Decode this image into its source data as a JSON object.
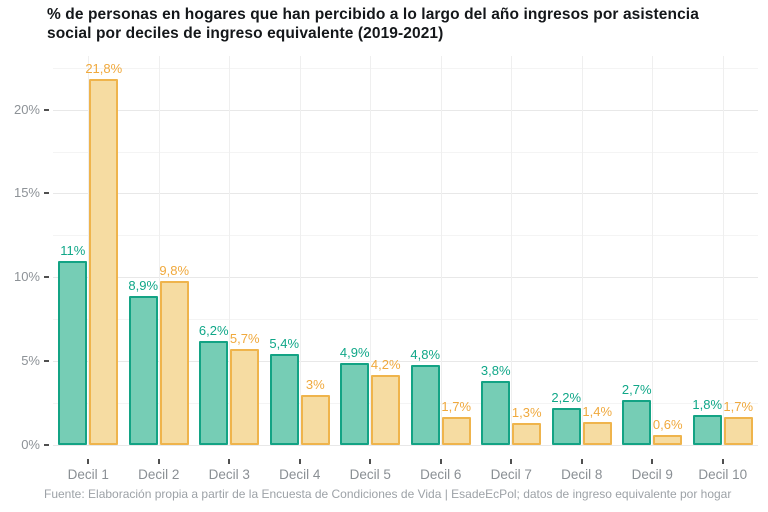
{
  "footer": {
    "text": "Fuente: Elaboración propia a partir de la Encuesta de Condiciones de Vida | EsadeEcPol; datos de ingreso equivalente por hogar"
  },
  "colors": {
    "title_text": "#14171a",
    "axis_text": "#8d9297",
    "footer_text": "#9da2a7",
    "tick": "#4f4f4f",
    "grid_major": "#e8e8e8",
    "grid_minor": "#f4f4f4",
    "grid_vertical": "#efefef"
  },
  "chart_data": {
    "type": "bar",
    "title": "% de personas en hogares que han percibido a lo largo del año ingresos por asistencia social por deciles de ingreso equivalente (2019-2021)",
    "categories": [
      "Decil 1",
      "Decil 2",
      "Decil 3",
      "Decil 4",
      "Decil 5",
      "Decil 6",
      "Decil 7",
      "Decil 8",
      "Decil 9",
      "Decil 10"
    ],
    "series": [
      {
        "key": "green",
        "values": [
          11,
          8.9,
          6.2,
          5.4,
          4.9,
          4.8,
          3.8,
          2.2,
          2.7,
          1.8
        ],
        "labels": [
          "11%",
          "8,9%",
          "6,2%",
          "5,4%",
          "4,9%",
          "4,8%",
          "3,8%",
          "2,2%",
          "2,7%",
          "1,8%"
        ],
        "fill": "#76CDB5",
        "stroke": "#13A384",
        "label_color": "#10A788"
      },
      {
        "key": "yellow",
        "values": [
          21.8,
          9.8,
          5.7,
          3,
          4.2,
          1.7,
          1.3,
          1.4,
          0.6,
          1.7
        ],
        "labels": [
          "21,8%",
          "9,8%",
          "5,7%",
          "3%",
          "4,2%",
          "1,7%",
          "1,3%",
          "1,4%",
          "0,6%",
          "1,7%"
        ],
        "fill": "#F6DCA2",
        "stroke": "#EFB44C",
        "label_color": "#F0A93D"
      }
    ],
    "y_major": [
      0,
      5,
      10,
      15,
      20
    ],
    "y_minor": [
      2.5,
      7.5,
      12.5,
      17.5,
      22.5
    ],
    "y_tick_labels": [
      "0%",
      "5%",
      "10%",
      "15%",
      "20%"
    ],
    "ylim": [
      0,
      23.2
    ],
    "grid": "horizontal major+minor, vertical at category centers",
    "legend": "none"
  }
}
